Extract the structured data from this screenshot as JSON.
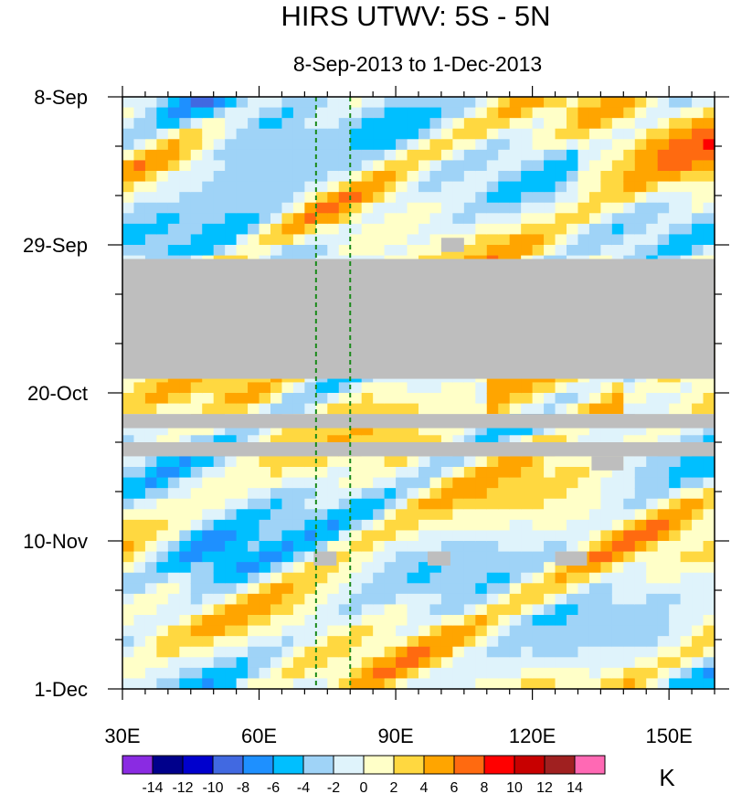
{
  "chart_data": {
    "type": "heatmap",
    "title": "HIRS UTWV: 5S - 5N",
    "subtitle": "8-Sep-2013 to 1-Dec-2013",
    "x_axis": {
      "range": [
        30,
        160
      ],
      "ticks": [
        30,
        60,
        90,
        120,
        150
      ],
      "tick_labels": [
        "30E",
        "60E",
        "90E",
        "120E",
        "150E"
      ]
    },
    "y_axis": {
      "units": "days since 8-Sep-2013",
      "range": [
        0,
        84
      ],
      "ticks": [
        0,
        21,
        42,
        63,
        84
      ],
      "tick_labels": [
        "8-Sep",
        "29-Sep",
        "20-Oct",
        "10-Nov",
        "1-Dec"
      ]
    },
    "reference_lines_lon": [
      72.5,
      80
    ],
    "missing_data": [
      {
        "lon": [
          30,
          160
        ],
        "days": [
          23,
          40
        ]
      },
      {
        "lon": [
          30,
          160
        ],
        "days": [
          45,
          47
        ]
      },
      {
        "lon": [
          30,
          160
        ],
        "days": [
          49,
          51
        ]
      },
      {
        "lon": [
          100,
          105
        ],
        "days": [
          20,
          22
        ]
      },
      {
        "lon": [
          72,
          77
        ],
        "days": [
          64.5,
          66.5
        ]
      },
      {
        "lon": [
          97,
          102
        ],
        "days": [
          64.5,
          66.5
        ]
      },
      {
        "lon": [
          125,
          132
        ],
        "days": [
          64.5,
          66.5
        ]
      },
      {
        "lon": [
          133,
          140
        ],
        "days": [
          51,
          53
        ]
      }
    ],
    "colorbar": {
      "levels": [
        -14,
        -12,
        -10,
        -8,
        -6,
        -4,
        -2,
        0,
        2,
        4,
        6,
        8,
        10,
        12,
        14
      ],
      "level_labels": [
        "-14",
        "-12",
        "-10",
        "-8",
        "-6",
        "-4",
        "-2",
        "0",
        "2",
        "4",
        "6",
        "8",
        "10",
        "12",
        "14"
      ],
      "colors": [
        "#8a2be2",
        "#00008b",
        "#0000cd",
        "#4169e1",
        "#1e90ff",
        "#00bfff",
        "#9fd3f7",
        "#dff3fb",
        "#ffffc8",
        "#ffd840",
        "#ffa500",
        "#ff6a10",
        "#ff0000",
        "#c80000",
        "#a02020",
        "#ff69b4"
      ],
      "units": "K"
    }
  }
}
